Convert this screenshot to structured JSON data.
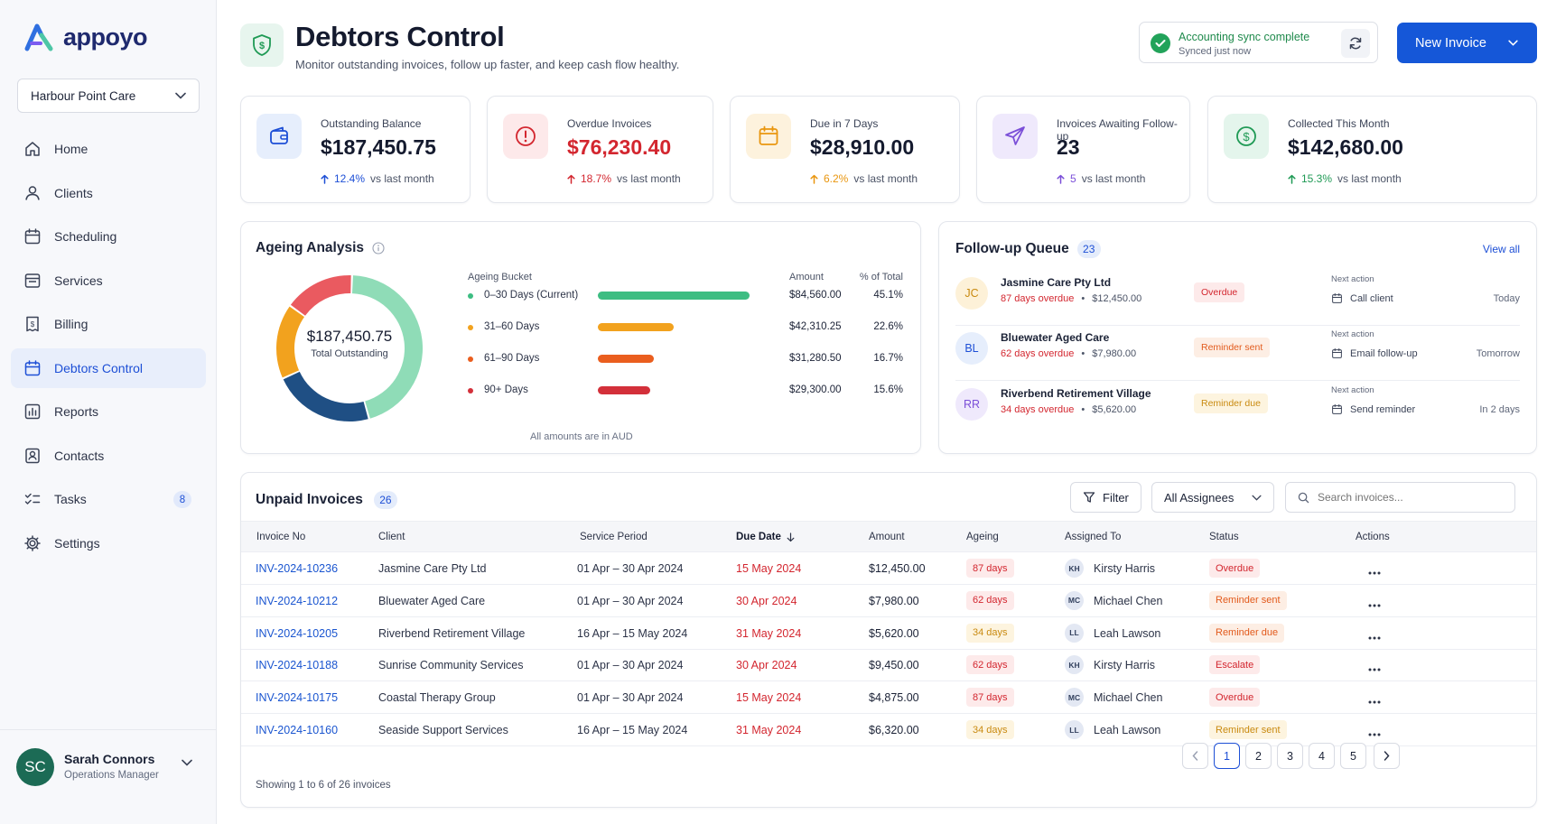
{
  "app": {
    "name": "appoyo"
  },
  "sidebar": {
    "org": "Harbour Point Care",
    "items": [
      {
        "label": "Home",
        "icon": "home-icon"
      },
      {
        "label": "Clients",
        "icon": "user-icon"
      },
      {
        "label": "Scheduling",
        "icon": "calendar-icon"
      },
      {
        "label": "Services",
        "icon": "services-icon"
      },
      {
        "label": "Billing",
        "icon": "billing-icon"
      },
      {
        "label": "Debtors Control",
        "icon": "calendar-icon",
        "active": true
      },
      {
        "label": "Reports",
        "icon": "chart-icon"
      },
      {
        "label": "Contacts",
        "icon": "contacts-icon"
      },
      {
        "label": "Tasks",
        "icon": "tasks-icon",
        "badge": "8"
      },
      {
        "label": "Settings",
        "icon": "gear-icon"
      }
    ],
    "user": {
      "initials": "SC",
      "name": "Sarah Connors",
      "role": "Operations Manager"
    }
  },
  "header": {
    "title": "Debtors Control",
    "subtitle": "Monitor outstanding invoices, follow up faster, and keep cash flow healthy.",
    "sync_title": "Accounting sync complete",
    "sync_sub": "Synced just now",
    "new_invoice": "New Invoice"
  },
  "stats": [
    {
      "label": "Outstanding Balance",
      "value": "$187,450.75",
      "trend": "12.4%",
      "trend_suffix": "vs last month",
      "color": "#1d4fd6",
      "bg": "#e6eefc"
    },
    {
      "label": "Overdue Invoices",
      "value": "$76,230.40",
      "trend": "18.7%",
      "trend_suffix": "vs last month",
      "color": "#d3262f",
      "bg": "#fde9ea"
    },
    {
      "label": "Due in 7 Days",
      "value": "$28,910.00",
      "trend": "6.2%",
      "trend_suffix": "vs last month",
      "color": "#e9960f",
      "bg": "#fdf2dd"
    },
    {
      "label": "Invoices Awaiting Follow-up",
      "value": "23",
      "trend": "5",
      "trend_suffix": "vs last month",
      "color": "#7b4fd8",
      "bg": "#efe9fc"
    },
    {
      "label": "Collected This Month",
      "value": "$142,680.00",
      "trend": "15.3%",
      "trend_suffix": "vs last month",
      "color": "#1f9a55",
      "bg": "#e4f5ec"
    }
  ],
  "ageing": {
    "title": "Ageing Analysis",
    "total": "$187,450.75",
    "total_label": "Total Outstanding",
    "col_bucket": "Ageing Bucket",
    "col_amount": "Amount",
    "col_pct": "% of Total",
    "note": "All amounts are in AUD",
    "rows": [
      {
        "label": "0–30 Days (Current)",
        "amount": "$84,560.00",
        "pct": "45.1%",
        "value": 45.1,
        "color": "#3dbd82"
      },
      {
        "label": "31–60 Days",
        "amount": "$42,310.25",
        "pct": "22.6%",
        "value": 22.6,
        "color": "#f2a21e"
      },
      {
        "label": "61–90 Days",
        "amount": "$31,280.50",
        "pct": "16.7%",
        "value": 16.7,
        "color": "#ea5e1e"
      },
      {
        "label": "90+ Days",
        "amount": "$29,300.00",
        "pct": "15.6%",
        "value": 15.6,
        "color": "#d3303a"
      }
    ]
  },
  "chart_data": {
    "type": "pie",
    "title": "Ageing Analysis",
    "categories": [
      "0–30 Days (Current)",
      "31–60 Days",
      "61–90 Days",
      "90+ Days"
    ],
    "values": [
      84560.0,
      42310.25,
      31280.5,
      29300.0
    ],
    "percent": [
      45.1,
      22.6,
      16.7,
      15.6
    ],
    "colors": [
      "#8fdcb7",
      "#1f4f84",
      "#f2a21e",
      "#ea5a60"
    ]
  },
  "followup": {
    "title": "Follow-up Queue",
    "count": "23",
    "view_all": "View all",
    "next_label": "Next action",
    "items": [
      {
        "initials": "JC",
        "client": "Jasmine Care Pty Ltd",
        "overdue": "87 days overdue",
        "amount": "$12,450.00",
        "tag": "Overdue",
        "tag_color": "#d3262f",
        "tag_bg": "#fdeaea",
        "avatar_bg": "#fdf1d8",
        "avatar_fg": "#c98a10",
        "action": "Call client",
        "when": "Today"
      },
      {
        "initials": "BL",
        "client": "Bluewater Aged Care",
        "overdue": "62 days overdue",
        "amount": "$7,980.00",
        "tag": "Reminder sent",
        "tag_color": "#e25a1c",
        "tag_bg": "#fdeee4",
        "avatar_bg": "#e6eefc",
        "avatar_fg": "#1d4fd6",
        "action": "Email follow-up",
        "when": "Tomorrow"
      },
      {
        "initials": "RR",
        "client": "Riverbend Retirement Village",
        "overdue": "34 days overdue",
        "amount": "$5,620.00",
        "tag": "Reminder due",
        "tag_color": "#c98a10",
        "tag_bg": "#fdf4df",
        "avatar_bg": "#efe9fc",
        "avatar_fg": "#7b4fd8",
        "action": "Send reminder",
        "when": "In 2 days"
      }
    ]
  },
  "invoices": {
    "title": "Unpaid Invoices",
    "count": "26",
    "filter": "Filter",
    "assignees": "All Assignees",
    "search_placeholder": "Search invoices...",
    "headers": [
      "Invoice No",
      "Client",
      "Service Period",
      "Due Date",
      "Amount",
      "Ageing",
      "Assigned To",
      "Status",
      "Actions"
    ],
    "rows": [
      {
        "no": "INV-2024-10236",
        "client": "Jasmine Care Pty Ltd",
        "period": "01 Apr – 30 Apr 2024",
        "due": "15 May 2024",
        "amount": "$12,450.00",
        "ageing": "87 days",
        "ageing_tone": "red",
        "initials": "KH",
        "assignee": "Kirsty Harris",
        "status": "Overdue",
        "status_tone": "red"
      },
      {
        "no": "INV-2024-10212",
        "client": "Bluewater Aged Care",
        "period": "01 Apr – 30 Apr 2024",
        "due": "30 Apr 2024",
        "amount": "$7,980.00",
        "ageing": "62 days",
        "ageing_tone": "red",
        "initials": "MC",
        "assignee": "Michael Chen",
        "status": "Reminder sent",
        "status_tone": "orange"
      },
      {
        "no": "INV-2024-10205",
        "client": "Riverbend Retirement Village",
        "period": "16 Apr – 15 May 2024",
        "due": "31 May 2024",
        "amount": "$5,620.00",
        "ageing": "34 days",
        "ageing_tone": "amber",
        "initials": "LL",
        "assignee": "Leah Lawson",
        "status": "Reminder due",
        "status_tone": "orange"
      },
      {
        "no": "INV-2024-10188",
        "client": "Sunrise Community Services",
        "period": "01 Apr – 30 Apr 2024",
        "due": "30 Apr 2024",
        "amount": "$9,450.00",
        "ageing": "62 days",
        "ageing_tone": "red",
        "initials": "KH",
        "assignee": "Kirsty Harris",
        "status": "Escalate",
        "status_tone": "red"
      },
      {
        "no": "INV-2024-10175",
        "client": "Coastal Therapy Group",
        "period": "01 Apr – 30 Apr 2024",
        "due": "15 May 2024",
        "amount": "$4,875.00",
        "ageing": "87 days",
        "ageing_tone": "red",
        "initials": "MC",
        "assignee": "Michael Chen",
        "status": "Overdue",
        "status_tone": "red"
      },
      {
        "no": "INV-2024-10160",
        "client": "Seaside Support Services",
        "period": "16 Apr – 15 May 2024",
        "due": "31 May 2024",
        "amount": "$6,320.00",
        "ageing": "34 days",
        "ageing_tone": "amber",
        "initials": "LL",
        "assignee": "Leah Lawson",
        "status": "Reminder sent",
        "status_tone": "amber"
      }
    ],
    "showing": "Showing 1 to 6 of 26 invoices",
    "pages": [
      "1",
      "2",
      "3",
      "4",
      "5"
    ]
  }
}
